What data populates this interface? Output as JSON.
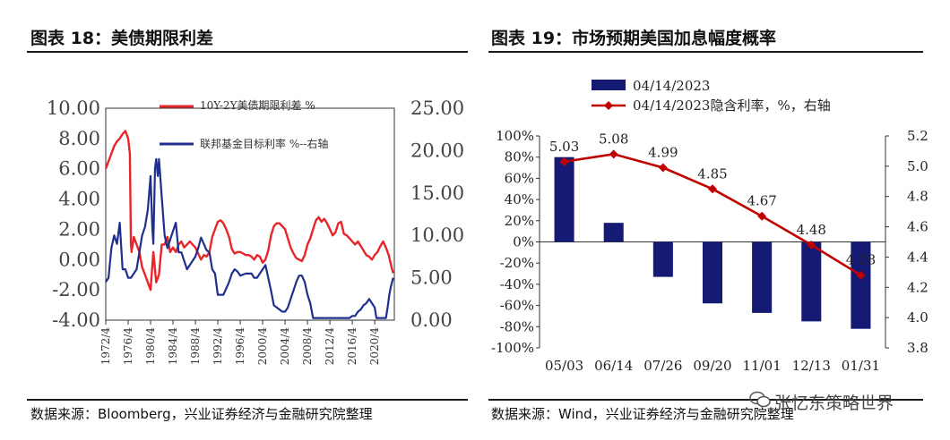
{
  "charts": {
    "left_title": "图表 18：美债期限利差",
    "right_title": "图表 19：市场预期美国加息幅度概率",
    "left_source": "数据来源：Bloomberg，兴业证券经济与金融研究院整理",
    "right_source": "数据来源：Wind，兴业证券经济与金融研究院整理",
    "watermark": "张忆东策略世界"
  },
  "colors": {
    "red": "#e8262a",
    "blue": "#1f2f8c",
    "navy": "#151a75",
    "darkred": "#c00000",
    "axis": "#333333"
  },
  "chart_data": [
    {
      "type": "line",
      "title": "图表 18：美债期限利差",
      "x_ticks": [
        "1972/4",
        "1976/4",
        "1980/4",
        "1984/4",
        "1988/4",
        "1992/4",
        "1996/4",
        "2000/4",
        "2004/4",
        "2008/4",
        "2012/4",
        "2016/4",
        "2020/4"
      ],
      "xlim": [
        1972.0,
        2023.5
      ],
      "y_left_ticks": [
        "10.00",
        "8.00",
        "6.00",
        "4.00",
        "2.00",
        "0.00",
        "-2.00",
        "-4.00"
      ],
      "ylim_left": [
        -4,
        10
      ],
      "y_right_ticks": [
        "25.00",
        "20.00",
        "15.00",
        "10.00",
        "5.00",
        "0.00"
      ],
      "ylim_right": [
        0,
        25
      ],
      "legend": "top",
      "series": [
        {
          "name": "10Y-2Y美债期限利差 %",
          "axis": "left",
          "color": "#e8262a",
          "x": [
            1972.0,
            1972.5,
            1973.0,
            1973.5,
            1974.0,
            1974.5,
            1975.0,
            1975.5,
            1976.0,
            1976.3,
            1976.5,
            1976.6,
            1977.0,
            1977.5,
            1978.0,
            1978.5,
            1979.0,
            1979.5,
            1980.0,
            1980.5,
            1981.0,
            1981.5,
            1982.0,
            1982.5,
            1983.0,
            1983.5,
            1984.0,
            1984.5,
            1985.0,
            1985.5,
            1986.0,
            1986.5,
            1987.0,
            1987.5,
            1988.0,
            1988.5,
            1989.0,
            1989.5,
            1990.0,
            1990.5,
            1991.0,
            1991.5,
            1992.0,
            1992.5,
            1993.0,
            1993.5,
            1994.0,
            1994.5,
            1995.0,
            1995.5,
            1996.0,
            1996.5,
            1997.0,
            1997.5,
            1998.0,
            1998.5,
            1999.0,
            1999.5,
            2000.0,
            2000.5,
            2001.0,
            2001.5,
            2002.0,
            2002.5,
            2003.0,
            2003.5,
            2004.0,
            2004.5,
            2005.0,
            2005.5,
            2006.0,
            2006.5,
            2007.0,
            2007.5,
            2008.0,
            2008.5,
            2009.0,
            2009.5,
            2010.0,
            2010.5,
            2011.0,
            2011.5,
            2012.0,
            2012.5,
            2013.0,
            2013.5,
            2014.0,
            2014.5,
            2015.0,
            2015.5,
            2016.0,
            2016.5,
            2017.0,
            2017.5,
            2018.0,
            2018.5,
            2019.0,
            2019.5,
            2020.0,
            2020.5,
            2021.0,
            2021.5,
            2022.0,
            2022.5,
            2023.0,
            2023.3
          ],
          "y": [
            6.0,
            6.5,
            7.0,
            7.5,
            7.8,
            8.0,
            8.3,
            8.5,
            8.0,
            7.0,
            1.0,
            0.5,
            1.5,
            1.0,
            0.5,
            -0.5,
            -1.0,
            -1.5,
            -2.0,
            0.5,
            -1.5,
            -1.0,
            1.0,
            1.0,
            1.5,
            0.5,
            0.8,
            0.5,
            1.0,
            1.2,
            0.8,
            1.0,
            1.2,
            1.0,
            0.8,
            0.4,
            0.0,
            0.3,
            0.2,
            0.5,
            1.5,
            2.0,
            2.5,
            2.6,
            2.4,
            2.0,
            1.5,
            0.7,
            0.4,
            0.5,
            0.5,
            0.4,
            0.3,
            0.3,
            0.2,
            0.0,
            0.3,
            0.2,
            -0.2,
            0.0,
            0.6,
            1.6,
            2.2,
            2.4,
            2.4,
            2.2,
            2.0,
            1.4,
            0.8,
            0.4,
            0.1,
            0.0,
            -0.1,
            0.3,
            1.0,
            1.4,
            2.0,
            2.6,
            2.8,
            2.5,
            2.7,
            2.4,
            2.0,
            1.6,
            1.8,
            2.4,
            2.5,
            1.7,
            1.6,
            1.4,
            1.2,
            1.0,
            1.2,
            0.9,
            0.6,
            0.3,
            0.2,
            0.0,
            0.3,
            0.5,
            0.9,
            1.2,
            0.8,
            0.3,
            -0.5,
            -0.9
          ]
        },
        {
          "name": "联邦基金目标利率 %--右轴",
          "axis": "right",
          "color": "#1f2f8c",
          "x": [
            1972.0,
            1972.5,
            1973.0,
            1973.5,
            1974.0,
            1974.5,
            1975.0,
            1975.5,
            1976.0,
            1976.5,
            1977.0,
            1977.5,
            1978.0,
            1978.5,
            1979.0,
            1979.5,
            1980.0,
            1980.3,
            1980.5,
            1980.8,
            1981.0,
            1981.3,
            1981.5,
            1982.0,
            1982.5,
            1983.0,
            1983.5,
            1984.0,
            1984.5,
            1985.0,
            1985.5,
            1986.0,
            1986.5,
            1987.0,
            1987.5,
            1988.0,
            1988.5,
            1989.0,
            1989.5,
            1990.0,
            1990.5,
            1991.0,
            1991.5,
            1992.0,
            1993.0,
            1994.0,
            1994.5,
            1995.0,
            1995.5,
            1996.0,
            1997.0,
            1998.0,
            1998.5,
            1999.0,
            1999.5,
            2000.0,
            2000.5,
            2001.0,
            2001.5,
            2002.0,
            2003.0,
            2003.5,
            2004.0,
            2004.5,
            2005.0,
            2005.5,
            2006.0,
            2006.5,
            2007.0,
            2007.5,
            2008.0,
            2008.5,
            2009.0,
            2012.0,
            2015.5,
            2016.0,
            2016.5,
            2017.0,
            2017.5,
            2018.0,
            2018.5,
            2019.0,
            2019.5,
            2020.0,
            2020.3,
            2021.0,
            2022.0,
            2022.3,
            2022.6,
            2022.9,
            2023.3
          ],
          "y": [
            4.5,
            5.0,
            8.5,
            10.0,
            9.0,
            11.5,
            6.0,
            6.0,
            5.0,
            5.0,
            5.5,
            6.0,
            8.0,
            10.0,
            11.0,
            13.0,
            17.0,
            11.0,
            9.0,
            18.0,
            19.0,
            17.0,
            19.0,
            14.5,
            10.0,
            8.5,
            9.5,
            10.5,
            11.5,
            8.0,
            8.0,
            7.0,
            6.0,
            6.5,
            7.0,
            7.5,
            8.5,
            9.75,
            9.0,
            8.25,
            8.0,
            6.0,
            5.5,
            3.0,
            3.0,
            4.5,
            5.5,
            6.0,
            5.75,
            5.25,
            5.5,
            5.5,
            5.0,
            5.0,
            5.5,
            6.0,
            6.5,
            5.0,
            3.5,
            1.75,
            1.25,
            1.0,
            1.0,
            1.5,
            2.5,
            3.5,
            4.5,
            5.25,
            5.25,
            4.5,
            3.0,
            2.0,
            0.25,
            0.25,
            0.25,
            0.5,
            0.5,
            1.0,
            1.25,
            1.75,
            2.0,
            2.5,
            2.0,
            1.5,
            0.25,
            0.25,
            0.25,
            1.5,
            3.0,
            4.0,
            5.0
          ]
        }
      ]
    },
    {
      "type": "bar",
      "title": "图表 19：市场预期美国加息幅度概率",
      "categories": [
        "05/03",
        "06/14",
        "07/26",
        "09/20",
        "11/01",
        "12/13",
        "01/31"
      ],
      "y_left_ticks": [
        "100%",
        "80%",
        "60%",
        "40%",
        "20%",
        "0%",
        "-20%",
        "-40%",
        "-60%",
        "-80%",
        "-100%"
      ],
      "ylim_left": [
        -100,
        100
      ],
      "y_right_ticks": [
        "5.2",
        "5.0",
        "4.8",
        "4.6",
        "4.4",
        "4.2",
        "4.0",
        "3.8"
      ],
      "ylim_right": [
        3.8,
        5.2
      ],
      "legend": "top-left",
      "series": [
        {
          "name": "04/14/2023",
          "axis": "left",
          "type": "bar",
          "color": "#151a75",
          "values": [
            80,
            18,
            -33,
            -58,
            -67,
            -75,
            -82
          ]
        },
        {
          "name": "04/14/2023隐含利率，%，右轴",
          "axis": "right",
          "type": "line",
          "color": "#c00000",
          "values": [
            5.03,
            5.08,
            4.99,
            4.85,
            4.67,
            4.48,
            4.28
          ],
          "labels": [
            "5.03",
            "5.08",
            "4.99",
            "4.85",
            "4.67",
            "4.48",
            "4.28"
          ]
        }
      ]
    }
  ]
}
